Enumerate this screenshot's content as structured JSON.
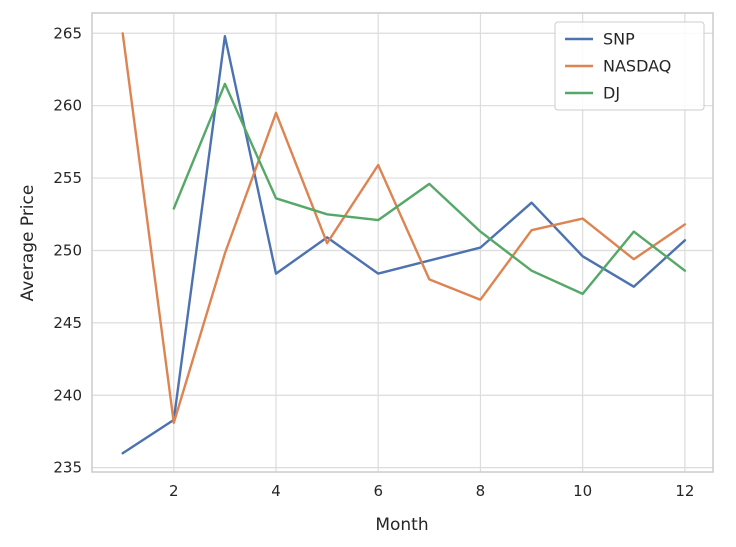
{
  "chart_data": {
    "type": "line",
    "title": "",
    "xlabel": "Month",
    "ylabel": "Average Price",
    "x": [
      1,
      2,
      3,
      4,
      5,
      6,
      7,
      8,
      9,
      10,
      11,
      12
    ],
    "xlim": [
      0.4,
      12.55
    ],
    "ylim": [
      234.7,
      266.4
    ],
    "xticks": [
      2,
      4,
      6,
      8,
      10,
      12
    ],
    "yticks": [
      235,
      240,
      245,
      250,
      255,
      260,
      265
    ],
    "grid": true,
    "legend_position": "top-right",
    "series": [
      {
        "name": "SNP",
        "color": "#4c72b0",
        "values": [
          236.0,
          238.3,
          264.8,
          248.4,
          250.9,
          248.4,
          249.3,
          250.2,
          253.3,
          249.6,
          247.5,
          250.7
        ]
      },
      {
        "name": "NASDAQ",
        "color": "#dd8452",
        "values": [
          265.0,
          238.1,
          249.8,
          259.5,
          250.5,
          255.9,
          248.0,
          246.6,
          251.4,
          252.2,
          249.4,
          251.8
        ]
      },
      {
        "name": "DJ",
        "color": "#55a868",
        "values": [
          null,
          252.9,
          261.5,
          253.6,
          252.5,
          252.1,
          254.6,
          251.3,
          248.6,
          247.0,
          251.3,
          248.6
        ]
      }
    ]
  }
}
